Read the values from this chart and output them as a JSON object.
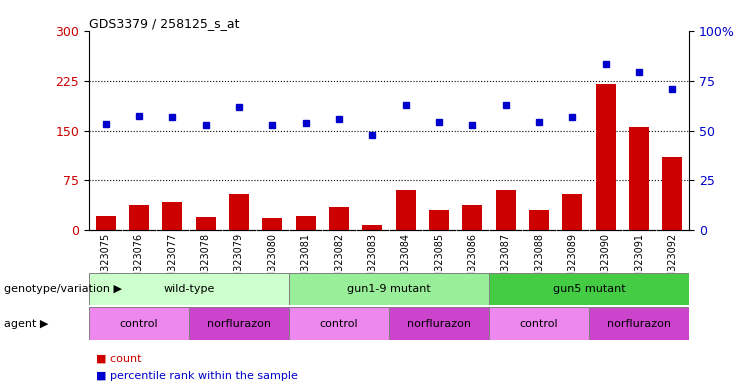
{
  "title": "GDS3379 / 258125_s_at",
  "samples": [
    "GSM323075",
    "GSM323076",
    "GSM323077",
    "GSM323078",
    "GSM323079",
    "GSM323080",
    "GSM323081",
    "GSM323082",
    "GSM323083",
    "GSM323084",
    "GSM323085",
    "GSM323086",
    "GSM323087",
    "GSM323088",
    "GSM323089",
    "GSM323090",
    "GSM323091",
    "GSM323092"
  ],
  "counts": [
    22,
    38,
    42,
    20,
    55,
    18,
    22,
    35,
    8,
    60,
    30,
    38,
    60,
    30,
    55,
    220,
    155,
    110
  ],
  "percentile_ranks": [
    160,
    172,
    170,
    158,
    185,
    158,
    162,
    168,
    143,
    188,
    163,
    158,
    188,
    163,
    170,
    250,
    238,
    213
  ],
  "left_yticks": [
    0,
    75,
    150,
    225,
    300
  ],
  "right_ytick_vals": [
    0,
    75,
    150,
    225,
    300
  ],
  "right_ytick_labels": [
    "0",
    "25",
    "50",
    "75",
    "100%"
  ],
  "bar_color": "#cc0000",
  "dot_color": "#0000cc",
  "genotype_groups": [
    {
      "label": "wild-type",
      "start": 0,
      "end": 6,
      "color": "#ccffcc"
    },
    {
      "label": "gun1-9 mutant",
      "start": 6,
      "end": 12,
      "color": "#99ee99"
    },
    {
      "label": "gun5 mutant",
      "start": 12,
      "end": 18,
      "color": "#44cc44"
    }
  ],
  "agent_groups": [
    {
      "label": "control",
      "start": 0,
      "end": 3,
      "color": "#ee88ee"
    },
    {
      "label": "norflurazon",
      "start": 3,
      "end": 6,
      "color": "#cc44cc"
    },
    {
      "label": "control",
      "start": 6,
      "end": 9,
      "color": "#ee88ee"
    },
    {
      "label": "norflurazon",
      "start": 9,
      "end": 12,
      "color": "#cc44cc"
    },
    {
      "label": "control",
      "start": 12,
      "end": 15,
      "color": "#ee88ee"
    },
    {
      "label": "norflurazon",
      "start": 15,
      "end": 18,
      "color": "#cc44cc"
    }
  ],
  "legend_count_label": "count",
  "legend_percentile_label": "percentile rank within the sample",
  "genotype_row_label": "genotype/variation",
  "agent_row_label": "agent",
  "xtick_bg_color": "#cccccc"
}
